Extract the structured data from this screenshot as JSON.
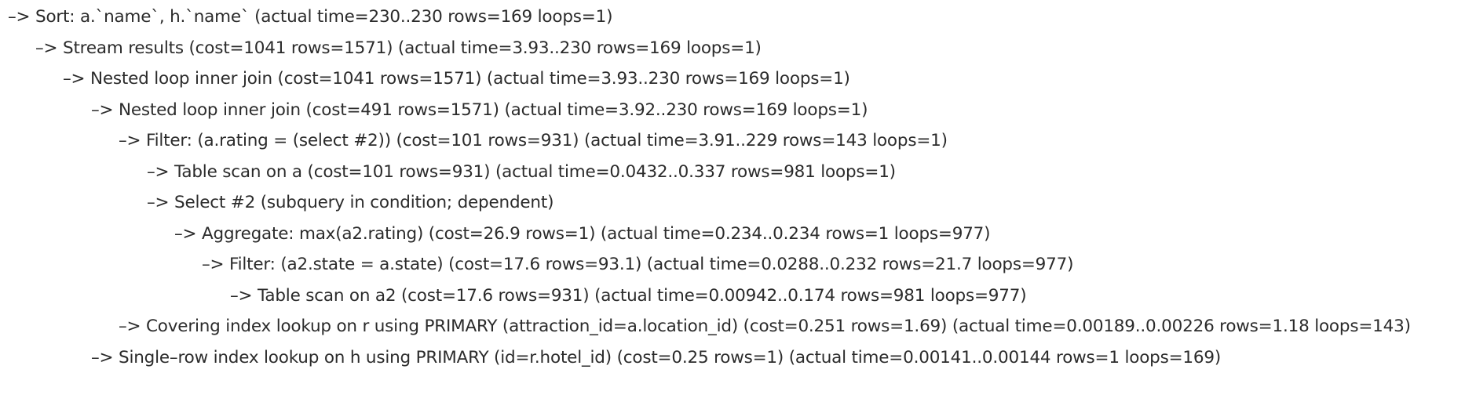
{
  "plan_lines": [
    "–> Sort: a.`name`, h.`name`  (actual time=230..230 rows=169 loops=1)",
    "–> Stream results  (cost=1041 rows=1571) (actual time=3.93..230 rows=169 loops=1)",
    "–> Nested loop inner join  (cost=1041 rows=1571) (actual time=3.93..230 rows=169 loops=1)",
    "–> Nested loop inner join  (cost=491 rows=1571) (actual time=3.92..230 rows=169 loops=1)",
    "–> Filter: (a.rating = (select #2))  (cost=101 rows=931) (actual time=3.91..229 rows=143 loops=1)",
    "–> Table scan on a  (cost=101 rows=931) (actual time=0.0432..0.337 rows=981 loops=1)",
    "–> Select #2 (subquery in condition; dependent)",
    "–> Aggregate: max(a2.rating)  (cost=26.9 rows=1) (actual time=0.234..0.234 rows=1 loops=977)",
    "–> Filter: (a2.state = a.state)  (cost=17.6 rows=93.1) (actual time=0.0288..0.232 rows=21.7 loops=977)",
    "–> Table scan on a2  (cost=17.6 rows=931) (actual time=0.00942..0.174 rows=981 loops=977)",
    "–> Covering index lookup on r using PRIMARY (attraction_id=a.location_id)  (cost=0.251 rows=1.69) (actual time=0.00189..0.00226 rows=1.18 loops=143)",
    "–> Single–row index lookup on h using PRIMARY (id=r.hotel_id)  (cost=0.25 rows=1) (actual time=0.00141..0.00144 rows=1 loops=169)"
  ]
}
